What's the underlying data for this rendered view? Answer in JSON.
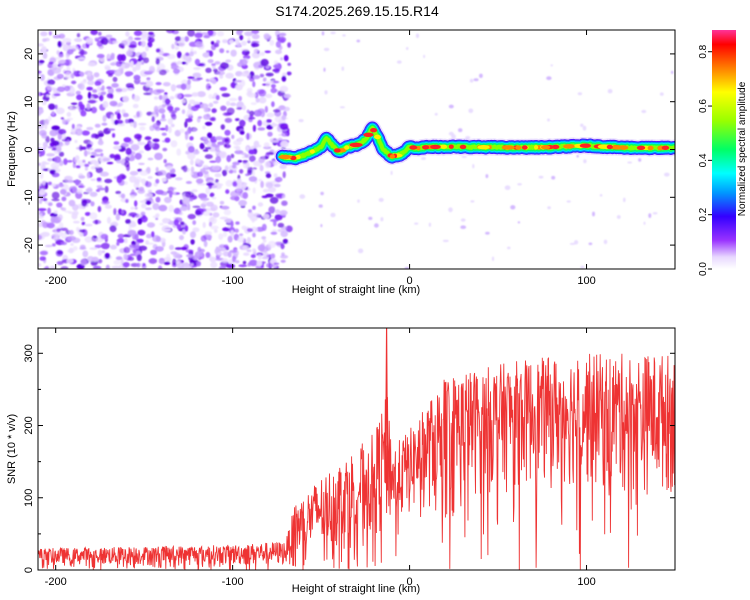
{
  "chart_data": [
    {
      "type": "heatmap",
      "title": "S174.2025.269.15.15.R14",
      "xlabel": "Height of straight line (km)",
      "ylabel": "Frequency (Hz)",
      "xlim": [
        -210,
        150
      ],
      "ylim": [
        -25,
        25
      ],
      "xticks": [
        -200,
        -100,
        0,
        100
      ],
      "yticks": [
        -20,
        -10,
        0,
        10,
        20
      ],
      "noise_region_x": [
        -210,
        -72
      ],
      "signal_ridge": {
        "x": [
          -72,
          -65,
          -58,
          -50,
          -47,
          -44,
          -40,
          -35,
          -30,
          -25,
          -21,
          -18,
          -15,
          -10,
          -5,
          0,
          5,
          10,
          20,
          40,
          60,
          80,
          100,
          120,
          140,
          150
        ],
        "y": [
          -1.5,
          -1.8,
          -1.0,
          0.5,
          2.5,
          1.0,
          -0.5,
          0.5,
          1.0,
          2.0,
          4.5,
          2.5,
          0.0,
          -1.5,
          -1.0,
          0.5,
          0.3,
          0.5,
          0.6,
          0.5,
          0.4,
          0.5,
          0.8,
          0.4,
          0.3,
          0.4
        ]
      },
      "colorbar": {
        "label": "Normalized spectral amplitude",
        "range": [
          0.0,
          0.88
        ],
        "ticks": [
          0.0,
          0.2,
          0.4,
          0.6,
          0.8
        ]
      }
    },
    {
      "type": "line",
      "xlabel": "Height of straight line (km)",
      "ylabel": "SNR (10 * v/v)",
      "xlim": [
        -210,
        150
      ],
      "ylim": [
        0,
        335
      ],
      "xticks": [
        -200,
        -100,
        0,
        100
      ],
      "yticks": [
        0,
        100,
        200,
        300
      ],
      "color": "#ee3333",
      "envelope": {
        "x": [
          -210,
          -100,
          -70,
          -65,
          -50,
          -30,
          -20,
          -12,
          -10,
          0,
          10,
          20,
          40,
          60,
          80,
          100,
          120,
          150
        ],
        "upper": [
          30,
          35,
          40,
          90,
          130,
          170,
          190,
          250,
          170,
          195,
          230,
          270,
          280,
          290,
          295,
          300,
          300,
          300
        ],
        "lower": [
          5,
          5,
          5,
          10,
          20,
          30,
          40,
          50,
          60,
          70,
          80,
          90,
          100,
          110,
          110,
          110,
          100,
          100
        ]
      },
      "spike": {
        "x": -13,
        "y": 335
      }
    }
  ]
}
